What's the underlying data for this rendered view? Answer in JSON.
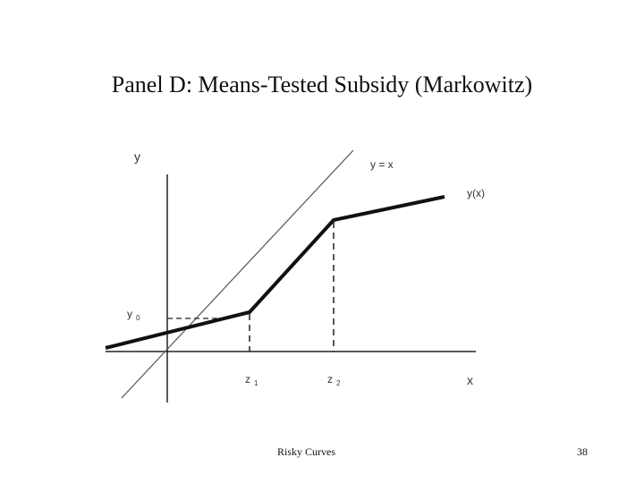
{
  "slide": {
    "title": "Panel D: Means-Tested Subsidy (Markowitz)",
    "footer_text": "Risky Curves",
    "page_number": "38"
  },
  "diagram": {
    "axis_y_label": "y",
    "axis_x_label": "x",
    "line_45_label": "y = x",
    "curve_label": "y(x)",
    "y0_label": {
      "base": "y",
      "sub": "0"
    },
    "z1_label": {
      "base": "z",
      "sub": "1"
    },
    "z2_label": {
      "base": "z",
      "sub": "2"
    }
  }
}
